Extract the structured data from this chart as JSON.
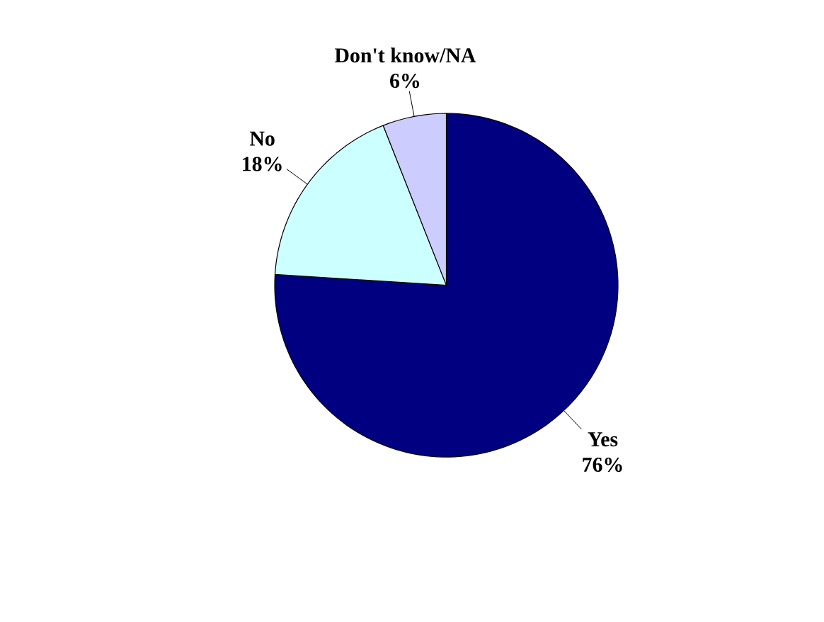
{
  "chart_data": {
    "type": "pie",
    "categories": [
      "Yes",
      "No",
      "Don't know/NA"
    ],
    "values": [
      76,
      18,
      6
    ],
    "colors": [
      "#000080",
      "#ccffff",
      "#ccccff"
    ],
    "value_labels": [
      "76%",
      "18%",
      "6%"
    ]
  }
}
